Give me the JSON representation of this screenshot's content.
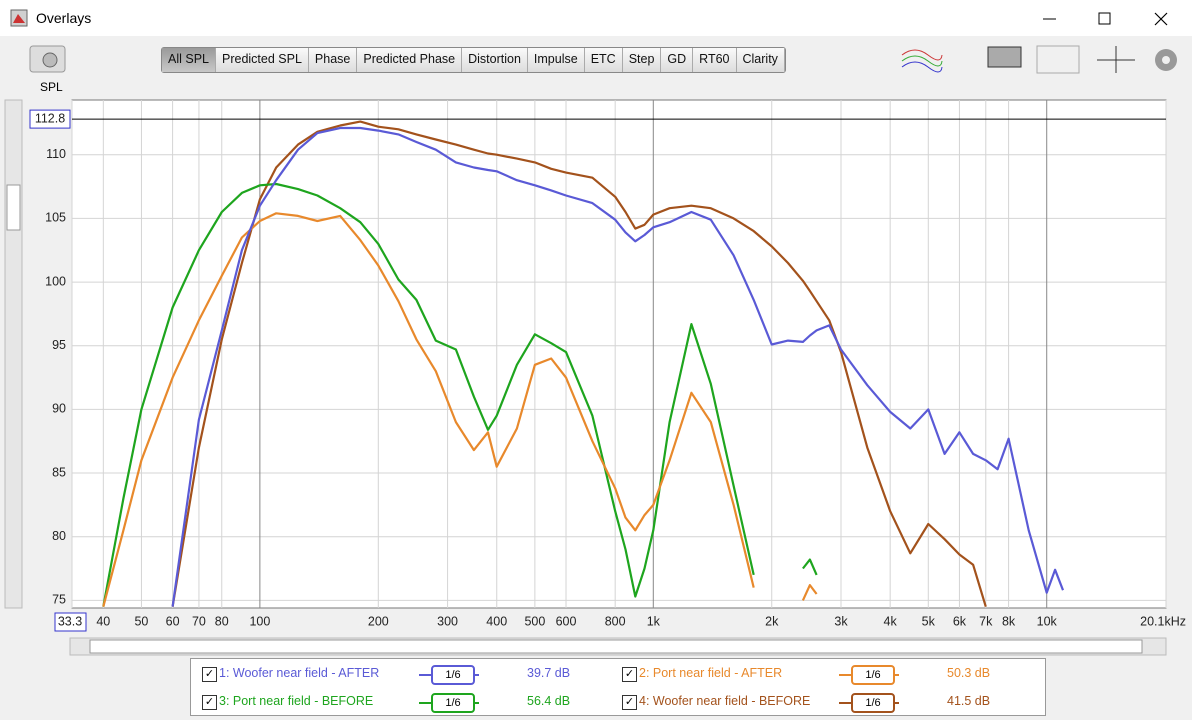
{
  "window": {
    "title": "Overlays"
  },
  "toolbar": {
    "tabs": [
      "All SPL",
      "Predicted SPL",
      "Phase",
      "Predicted Phase",
      "Distortion",
      "Impulse",
      "ETC",
      "Step",
      "GD",
      "RT60",
      "Clarity"
    ],
    "active_tab": 0
  },
  "chart_data": {
    "type": "line",
    "y_label": "SPL",
    "xscale": "log",
    "grid": true,
    "cursor_y": 112.8,
    "xlim": [
      33.3,
      20100
    ],
    "ylim": [
      74.4,
      114.3
    ],
    "xticks": [
      33.3,
      40,
      50,
      60,
      70,
      80,
      100,
      200,
      300,
      400,
      500,
      600,
      800,
      {
        "value": 1000,
        "label": "1k"
      },
      {
        "value": 2000,
        "label": "2k"
      },
      {
        "value": 3000,
        "label": "3k"
      },
      {
        "value": 4000,
        "label": "4k"
      },
      {
        "value": 5000,
        "label": "5k"
      },
      {
        "value": 6000,
        "label": "6k"
      },
      {
        "value": 7000,
        "label": "7k"
      },
      {
        "value": 8000,
        "label": "8k"
      },
      {
        "value": 10000,
        "label": "10k"
      },
      {
        "value": 20100,
        "label": "20.1kHz"
      }
    ],
    "yticks": [
      75,
      80,
      85,
      90,
      95,
      100,
      105,
      110
    ],
    "x": [
      40,
      45,
      50,
      60,
      70,
      80,
      90,
      100,
      110,
      125,
      140,
      160,
      180,
      200,
      225,
      250,
      280,
      315,
      350,
      380,
      400,
      450,
      500,
      550,
      600,
      700,
      800,
      850,
      900,
      950,
      1000,
      1100,
      1250,
      1400,
      1600,
      1800,
      2000,
      2200,
      2400,
      2500,
      2600,
      2800,
      3000,
      3500,
      4000,
      4500,
      5000,
      5500,
      6000,
      6500,
      7000,
      7500,
      8000,
      9000,
      10000,
      10500,
      11000,
      12000
    ],
    "series": [
      {
        "name": "1: Woofer near field - AFTER",
        "color": "#5a5ad6",
        "smoothing": "1/6",
        "offset_label": "39.7 dB",
        "values": [
          null,
          null,
          null,
          74.5,
          89.2,
          96.2,
          102.5,
          106,
          108,
          110.4,
          111.7,
          112.1,
          112.1,
          111.9,
          111.6,
          111,
          110.4,
          109.4,
          109,
          108.8,
          108.7,
          108,
          107.6,
          107.2,
          106.8,
          106.2,
          104.9,
          103.9,
          103.2,
          103.7,
          104.3,
          104.7,
          105.5,
          104.9,
          102.1,
          98.6,
          95.1,
          95.4,
          95.3,
          95.8,
          96.2,
          96.6,
          94.7,
          91.9,
          89.8,
          88.5,
          90,
          86.5,
          88.2,
          86.5,
          86,
          85.3,
          87.7,
          80.5,
          75.6,
          77.4,
          75.8,
          null
        ]
      },
      {
        "name": "2: Port near field - AFTER",
        "color": "#e8892c",
        "smoothing": "1/6",
        "offset_label": "50.3 dB",
        "values": [
          74.5,
          80.5,
          86,
          92.5,
          97,
          100.5,
          103.5,
          104.8,
          105.4,
          105.2,
          104.8,
          105.2,
          103.3,
          101.3,
          98.5,
          95.5,
          93,
          89,
          86.8,
          88.2,
          85.5,
          88.5,
          93.5,
          94,
          92.5,
          87.5,
          83.8,
          81.5,
          80.5,
          81.7,
          82.5,
          86,
          91.3,
          89,
          82.5,
          76,
          null,
          null,
          75,
          76.2,
          75.5,
          null,
          null,
          null,
          null,
          null,
          null,
          null,
          null,
          null,
          null,
          null,
          null,
          null,
          null,
          null,
          null,
          null
        ]
      },
      {
        "name": "3: Port near field - BEFORE",
        "color": "#1ea51e",
        "smoothing": "1/6",
        "offset_label": "56.4 dB",
        "values": [
          74.5,
          83,
          90,
          98,
          102.5,
          105.5,
          107,
          107.6,
          107.7,
          107.3,
          106.8,
          105.8,
          104.7,
          103,
          100.2,
          98.6,
          95.4,
          94.7,
          91,
          88.4,
          89.5,
          93.5,
          95.9,
          95.2,
          94.5,
          89.5,
          82,
          79,
          75.3,
          77.5,
          80.5,
          89,
          96.7,
          92,
          84,
          77,
          null,
          null,
          77.5,
          78.2,
          77,
          null,
          null,
          null,
          null,
          null,
          null,
          null,
          null,
          null,
          null,
          null,
          null,
          null,
          null,
          null,
          null,
          null
        ]
      },
      {
        "name": "4: Woofer near field - BEFORE",
        "color": "#a3521c",
        "smoothing": "1/6",
        "offset_label": "41.5 dB",
        "values": [
          null,
          null,
          null,
          74.5,
          87,
          95.5,
          101.5,
          106.5,
          109,
          110.8,
          111.8,
          112.3,
          112.6,
          112.2,
          112,
          111.6,
          111.2,
          110.8,
          110.4,
          110.1,
          110,
          109.7,
          109.4,
          108.9,
          108.6,
          108.2,
          106.7,
          105.5,
          104.2,
          104.5,
          105.3,
          105.8,
          106,
          105.8,
          105,
          104,
          102.8,
          101.5,
          100.1,
          99.3,
          98.5,
          97,
          94.5,
          87,
          82,
          78.7,
          81,
          79.8,
          78.6,
          77.8,
          74.5,
          null,
          null,
          null,
          null,
          null,
          null,
          null
        ]
      }
    ]
  }
}
